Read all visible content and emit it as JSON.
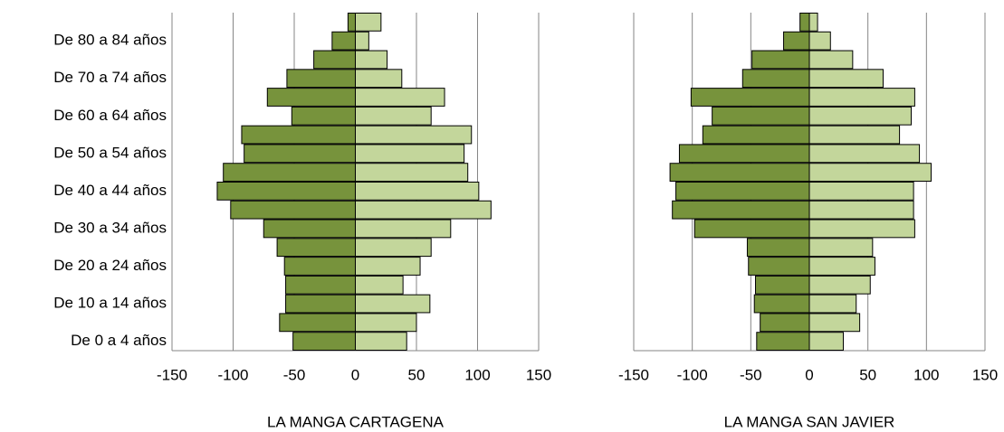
{
  "chart_data": [
    {
      "type": "pyramid",
      "xlabel": "LA MANGA CARTAGENA",
      "categories": [
        "De 0 a 4 años",
        null,
        "De 10 a 14 años",
        null,
        "De 20 a 24 años",
        null,
        "De 30 a 34 años",
        null,
        "De 40 a 44 años",
        null,
        "De 50 a 54 años",
        null,
        "De 60 a 64 años",
        null,
        "De 70 a 74 años",
        null,
        "De 80 a 84 años",
        null
      ],
      "series": [
        {
          "color": "#77933c",
          "values": [
            -51,
            -62,
            -57,
            -57,
            -58,
            -64,
            -75,
            -102,
            -113,
            -108,
            -91,
            -93,
            -52,
            -72,
            -56,
            -34,
            -19,
            -6
          ]
        },
        {
          "color": "#c3d69b",
          "values": [
            42,
            50,
            61,
            39,
            53,
            62,
            78,
            111,
            101,
            92,
            89,
            95,
            62,
            73,
            38,
            26,
            11,
            21
          ]
        }
      ],
      "xlim": [
        -150,
        150
      ],
      "xticks": [
        -150,
        -100,
        -50,
        0,
        50,
        100,
        150
      ],
      "grid": true
    },
    {
      "type": "pyramid",
      "xlabel": "LA MANGA SAN JAVIER",
      "series": [
        {
          "color": "#77933c",
          "values": [
            -45,
            -42,
            -47,
            -46,
            -52,
            -53,
            -98,
            -117,
            -114,
            -119,
            -111,
            -91,
            -83,
            -101,
            -57,
            -49,
            -22,
            -8
          ]
        },
        {
          "color": "#c3d69b",
          "values": [
            29,
            43,
            40,
            52,
            56,
            54,
            90,
            89,
            89,
            104,
            94,
            77,
            87,
            90,
            63,
            37,
            18,
            7
          ]
        }
      ],
      "xlim": [
        -150,
        150
      ],
      "xticks": [
        -150,
        -100,
        -50,
        0,
        50,
        100,
        150
      ],
      "grid": true
    }
  ]
}
